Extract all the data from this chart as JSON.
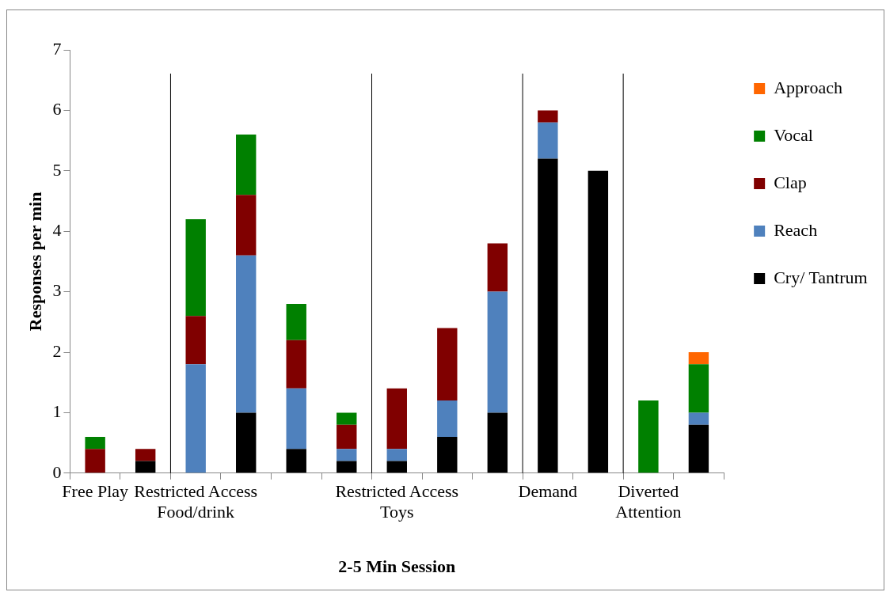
{
  "chart_data": {
    "type": "bar",
    "stacked": true,
    "xlabel": "2-5 Min Session",
    "ylabel": "Responses per min",
    "categories": [
      "Free Play",
      null,
      "Restricted Access Food/drink",
      null,
      null,
      null,
      "Restricted Access Toys",
      null,
      null,
      "Demand",
      null,
      "Diverted Attention",
      null
    ],
    "series": [
      {
        "name": "Cry/ Tantrum",
        "color": "#000000",
        "values": [
          0,
          0.2,
          0,
          1.0,
          0.4,
          0.2,
          0.2,
          0.6,
          1.0,
          5.2,
          5.0,
          0,
          0.8
        ]
      },
      {
        "name": "Reach",
        "color": "#4f81bd",
        "values": [
          0,
          0,
          1.8,
          2.6,
          1.0,
          0.2,
          0.2,
          0.6,
          2.0,
          0.6,
          0,
          0,
          0.2
        ]
      },
      {
        "name": "Clap",
        "color": "#800000",
        "values": [
          0.4,
          0.2,
          0.8,
          1.0,
          0.8,
          0.4,
          1.0,
          1.2,
          0.8,
          0.2,
          0,
          0,
          0
        ]
      },
      {
        "name": "Vocal",
        "color": "#008000",
        "values": [
          0.2,
          0,
          1.6,
          1.0,
          0.6,
          0.2,
          0,
          0,
          0,
          0,
          0,
          1.2,
          0.8
        ]
      },
      {
        "name": "Approach",
        "color": "#ff6600",
        "values": [
          0,
          0,
          0,
          0,
          0,
          0,
          0,
          0,
          0,
          0,
          0,
          0,
          0.2
        ]
      }
    ],
    "ylim": [
      0,
      7
    ],
    "yticks": [
      0,
      1,
      2,
      3,
      4,
      5,
      6,
      7
    ],
    "grid": false,
    "legend": "right"
  }
}
